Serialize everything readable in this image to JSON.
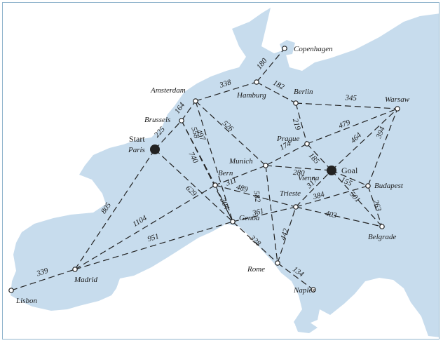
{
  "cities": {
    "lisbon": "Lisbon",
    "madrid": "Madrid",
    "paris": "Paris",
    "brussels": "Brussels",
    "amsterdam": "Amsterdam",
    "hamburg": "Hamburg",
    "copenhagen": "Copenhagen",
    "berlin": "Berlin",
    "warsaw": "Warsaw",
    "prague": "Prague",
    "munich": "Munich",
    "vienna": "Vienna",
    "bern": "Bern",
    "genoa": "Genoa",
    "trieste": "Trieste",
    "budapest": "Budapest",
    "belgrade": "Belgrade",
    "rome": "Rome",
    "naples": "Naples"
  },
  "markers": {
    "start": "Start",
    "goal": "Goal"
  },
  "roads": [
    {
      "from": "lisbon",
      "to": "madrid",
      "km": "339"
    },
    {
      "from": "madrid",
      "to": "paris",
      "km": "805"
    },
    {
      "from": "madrid",
      "to": "bern",
      "km": "1104"
    },
    {
      "from": "madrid",
      "to": "genoa",
      "km": "951"
    },
    {
      "from": "paris",
      "to": "brussels",
      "km": "225"
    },
    {
      "from": "paris",
      "to": "genoa",
      "km": "629"
    },
    {
      "from": "brussels",
      "to": "amsterdam",
      "km": "164"
    },
    {
      "from": "brussels",
      "to": "bern",
      "km": "740"
    },
    {
      "from": "brussels",
      "to": "genoa",
      "km": "497"
    },
    {
      "from": "amsterdam",
      "to": "hamburg",
      "km": "338"
    },
    {
      "from": "amsterdam",
      "to": "munich",
      "km": "526"
    },
    {
      "from": "amsterdam",
      "to": "genoa",
      "km": "558"
    },
    {
      "from": "hamburg",
      "to": "copenhagen",
      "km": "180"
    },
    {
      "from": "hamburg",
      "to": "berlin",
      "km": "182"
    },
    {
      "from": "berlin",
      "to": "warsaw",
      "km": "345"
    },
    {
      "from": "berlin",
      "to": "prague",
      "km": "219"
    },
    {
      "from": "prague",
      "to": "vienna",
      "km": "185"
    },
    {
      "from": "prague",
      "to": "munich",
      "km": "174"
    },
    {
      "from": "munich",
      "to": "vienna",
      "km": "280"
    },
    {
      "from": "munich",
      "to": "bern",
      "km": "311"
    },
    {
      "from": "munich",
      "to": "rome",
      "km": "582"
    },
    {
      "from": "bern",
      "to": "genoa",
      "km": "304"
    },
    {
      "from": "bern",
      "to": "trieste",
      "km": "489"
    },
    {
      "from": "genoa",
      "to": "trieste",
      "km": "361"
    },
    {
      "from": "genoa",
      "to": "rome",
      "km": "328"
    },
    {
      "from": "rome",
      "to": "naples",
      "km": "134"
    },
    {
      "from": "rome",
      "to": "trieste",
      "km": "442"
    },
    {
      "from": "trieste",
      "to": "vienna",
      "km": "317"
    },
    {
      "from": "trieste",
      "to": "budapest",
      "km": "384"
    },
    {
      "from": "trieste",
      "to": "belgrade",
      "km": "403"
    },
    {
      "from": "vienna",
      "to": "budapest",
      "km": "155"
    },
    {
      "from": "vienna",
      "to": "warsaw",
      "km": "464"
    },
    {
      "from": "prague",
      "to": "warsaw",
      "km": "479"
    },
    {
      "from": "vienna",
      "to": "belgrade",
      "km": "501"
    },
    {
      "from": "budapest",
      "to": "warsaw",
      "km": "394"
    },
    {
      "from": "budapest",
      "to": "belgrade",
      "km": "263"
    }
  ]
}
